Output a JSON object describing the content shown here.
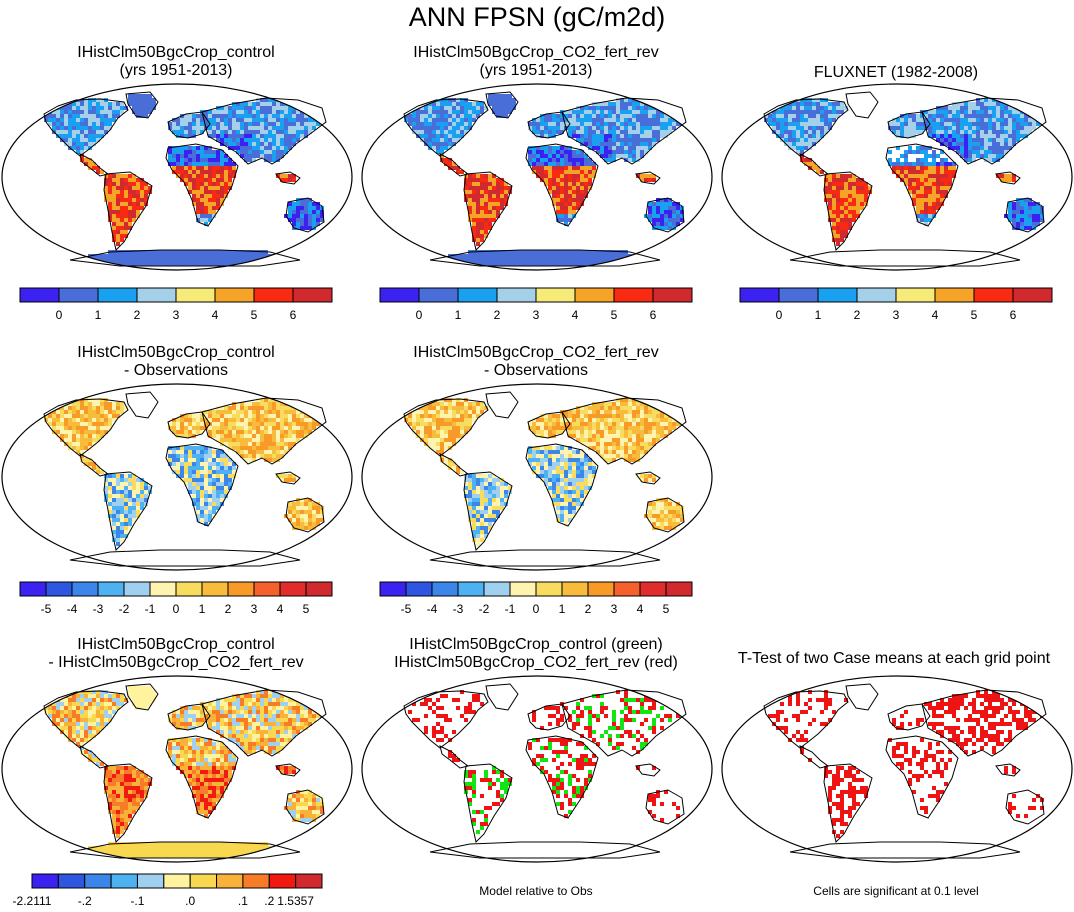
{
  "title": "ANN FPSN (gC/m2d)",
  "colors": {
    "abs": [
      "#3b22f0",
      "#4a6ed8",
      "#1aa0f0",
      "#a4d0ea",
      "#f6ea78",
      "#f6a428",
      "#f82a12",
      "#d02a2e"
    ],
    "diff": [
      "#3b22f0",
      "#2e56e0",
      "#3b86e8",
      "#4eb2f2",
      "#a0d0f0",
      "#fff3b0",
      "#f8dc60",
      "#f8bc3c",
      "#f89a28",
      "#f6602c",
      "#e02c2a"
    ],
    "ctrl_minus_rev": [
      "#3b22f0",
      "#2e56e0",
      "#3b86e8",
      "#4eb2f2",
      "#a0d0f0",
      "#fff3a0",
      "#f8d850",
      "#f8b23a",
      "#f87c28",
      "#f01a10",
      "#d02a2e"
    ],
    "sig_green": "#12e612",
    "sig_red": "#ee1414"
  },
  "panels": [
    {
      "title_line1": "IHistClm50BgcCrop_control",
      "title_line2": "(yrs 1951-2013)"
    },
    {
      "title_line1": "IHistClm50BgcCrop_CO2_fert_rev",
      "title_line2": "(yrs 1951-2013)"
    },
    {
      "title_line1": "FLUXNET (1982-2008)",
      "title_line2": ""
    },
    {
      "title_line1": "IHistClm50BgcCrop_control",
      "title_line2": "- Observations"
    },
    {
      "title_line1": "IHistClm50BgcCrop_CO2_fert_rev",
      "title_line2": "- Observations"
    },
    {
      "title_line1": "IHistClm50BgcCrop_control",
      "title_line2": "- IHistClm50BgcCrop_CO2_fert_rev"
    },
    {
      "title_line1": "IHistClm50BgcCrop_control (green)",
      "title_line2": "IHistClm50BgcCrop_CO2_fert_rev (red)"
    },
    {
      "title_line1": "T-Test of two Case means at each grid point",
      "title_line2": ""
    }
  ],
  "colorbars": {
    "abs_ticks": [
      "0",
      "1",
      "2",
      "3",
      "4",
      "5",
      "6"
    ],
    "diff_ticks": [
      "-5",
      "-4",
      "-3",
      "-2",
      "-1",
      "0",
      "1",
      "2",
      "3",
      "4",
      "5"
    ],
    "ctrl_minus_rev_ticks": [
      "-2.2111",
      "-.2",
      "-.1",
      ".0",
      ".1",
      ".2",
      "1.5357"
    ]
  },
  "notes": {
    "middle": "Model relative to Obs",
    "right": "Cells are significant at 0.1 level"
  }
}
